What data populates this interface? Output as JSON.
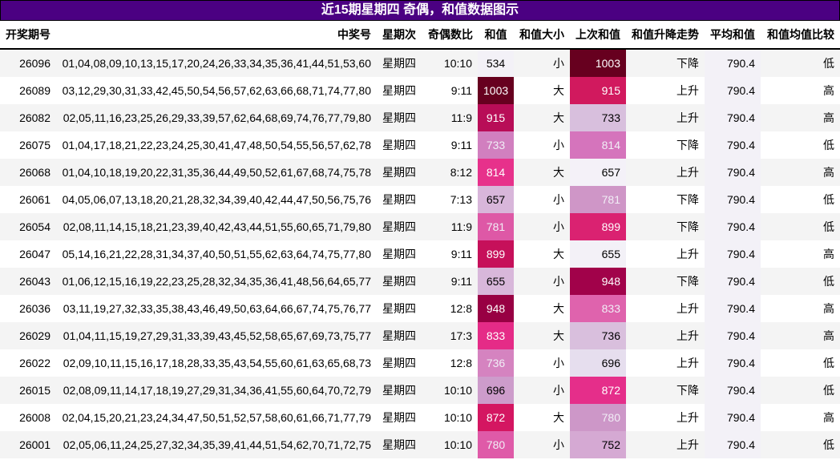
{
  "title": "近15期星期四 奇偶，和值数据图示",
  "columns": [
    "开奖期号",
    "中奖号",
    "星期次",
    "奇偶数比",
    "和值",
    "和值大小",
    "上次和值",
    "和值升降走势",
    "平均和值",
    "和值均值比较"
  ],
  "rows": [
    {
      "issue": "26096",
      "numbers": "01,04,08,09,10,13,15,17,20,24,26,33,34,35,36,41,44,51,53,60",
      "weekday": "星期四",
      "odd_even": "10:10",
      "sum": "534",
      "sum_size": "小",
      "prev_sum": "1003",
      "trend": "下降",
      "avg_sum": "790.4",
      "avg_compare": "低"
    },
    {
      "issue": "26089",
      "numbers": "03,12,29,30,31,33,42,45,50,54,56,57,62,63,66,68,71,74,77,80",
      "weekday": "星期四",
      "odd_even": "9:11",
      "sum": "1003",
      "sum_size": "大",
      "prev_sum": "915",
      "trend": "上升",
      "avg_sum": "790.4",
      "avg_compare": "高"
    },
    {
      "issue": "26082",
      "numbers": "02,05,11,16,23,25,26,29,33,39,57,62,64,68,69,74,76,77,79,80",
      "weekday": "星期四",
      "odd_even": "11:9",
      "sum": "915",
      "sum_size": "大",
      "prev_sum": "733",
      "trend": "上升",
      "avg_sum": "790.4",
      "avg_compare": "高"
    },
    {
      "issue": "26075",
      "numbers": "01,04,17,18,21,22,23,24,25,30,41,47,48,50,54,55,56,57,62,78",
      "weekday": "星期四",
      "odd_even": "9:11",
      "sum": "733",
      "sum_size": "小",
      "prev_sum": "814",
      "trend": "下降",
      "avg_sum": "790.4",
      "avg_compare": "低"
    },
    {
      "issue": "26068",
      "numbers": "01,04,10,18,19,20,22,31,35,36,44,49,50,52,61,67,68,74,75,78",
      "weekday": "星期四",
      "odd_even": "8:12",
      "sum": "814",
      "sum_size": "大",
      "prev_sum": "657",
      "trend": "上升",
      "avg_sum": "790.4",
      "avg_compare": "高"
    },
    {
      "issue": "26061",
      "numbers": "04,05,06,07,13,18,20,21,28,32,34,39,40,42,44,47,50,56,75,76",
      "weekday": "星期四",
      "odd_even": "7:13",
      "sum": "657",
      "sum_size": "小",
      "prev_sum": "781",
      "trend": "下降",
      "avg_sum": "790.4",
      "avg_compare": "低"
    },
    {
      "issue": "26054",
      "numbers": "02,08,11,14,15,18,21,23,39,40,42,43,44,51,55,60,65,71,79,80",
      "weekday": "星期四",
      "odd_even": "11:9",
      "sum": "781",
      "sum_size": "小",
      "prev_sum": "899",
      "trend": "下降",
      "avg_sum": "790.4",
      "avg_compare": "低"
    },
    {
      "issue": "26047",
      "numbers": "05,14,16,21,22,28,31,34,37,40,50,51,55,62,63,64,74,75,77,80",
      "weekday": "星期四",
      "odd_even": "9:11",
      "sum": "899",
      "sum_size": "大",
      "prev_sum": "655",
      "trend": "上升",
      "avg_sum": "790.4",
      "avg_compare": "高"
    },
    {
      "issue": "26043",
      "numbers": "01,06,12,15,16,19,22,23,25,28,32,34,35,36,41,48,56,64,65,77",
      "weekday": "星期四",
      "odd_even": "9:11",
      "sum": "655",
      "sum_size": "小",
      "prev_sum": "948",
      "trend": "下降",
      "avg_sum": "790.4",
      "avg_compare": "低"
    },
    {
      "issue": "26036",
      "numbers": "03,11,19,27,32,33,35,38,43,46,49,50,63,64,66,67,74,75,76,77",
      "weekday": "星期四",
      "odd_even": "12:8",
      "sum": "948",
      "sum_size": "大",
      "prev_sum": "833",
      "trend": "上升",
      "avg_sum": "790.4",
      "avg_compare": "高"
    },
    {
      "issue": "26029",
      "numbers": "01,04,11,15,19,27,29,31,33,39,43,45,52,58,65,67,69,73,75,77",
      "weekday": "星期四",
      "odd_even": "17:3",
      "sum": "833",
      "sum_size": "大",
      "prev_sum": "736",
      "trend": "上升",
      "avg_sum": "790.4",
      "avg_compare": "高"
    },
    {
      "issue": "26022",
      "numbers": "02,09,10,11,15,16,17,18,28,33,35,43,54,55,60,61,63,65,68,73",
      "weekday": "星期四",
      "odd_even": "12:8",
      "sum": "736",
      "sum_size": "小",
      "prev_sum": "696",
      "trend": "上升",
      "avg_sum": "790.4",
      "avg_compare": "低"
    },
    {
      "issue": "26015",
      "numbers": "02,08,09,11,14,17,18,19,27,29,31,34,36,41,55,60,64,70,72,79",
      "weekday": "星期四",
      "odd_even": "10:10",
      "sum": "696",
      "sum_size": "小",
      "prev_sum": "872",
      "trend": "下降",
      "avg_sum": "790.4",
      "avg_compare": "低"
    },
    {
      "issue": "26008",
      "numbers": "02,04,15,20,21,23,24,34,47,50,51,52,57,58,60,61,66,71,77,79",
      "weekday": "星期四",
      "odd_even": "10:10",
      "sum": "872",
      "sum_size": "大",
      "prev_sum": "780",
      "trend": "上升",
      "avg_sum": "790.4",
      "avg_compare": "高"
    },
    {
      "issue": "26001",
      "numbers": "02,05,06,11,24,25,27,32,34,35,39,41,44,51,54,62,70,71,72,75",
      "weekday": "星期四",
      "odd_even": "10:10",
      "sum": "780",
      "sum_size": "小",
      "prev_sum": "752",
      "trend": "上升",
      "avg_sum": "790.4",
      "avg_compare": "低"
    }
  ],
  "colors": {
    "title_bg": "#4b0082",
    "row_odd_bg": "#f4f4f4",
    "row_even_bg": "#ffffff",
    "avg_col_bg": "#f3f1f7",
    "sum_cell_bg": [
      "#f3f1f7",
      "#67001f",
      "#b80d57",
      "#d17fbf",
      "#e7318b",
      "#d8b6da",
      "#de58a6",
      "#c6105a",
      "#d8b7da",
      "#980043",
      "#e52b87",
      "#d583c0",
      "#cd9ccb",
      "#d41661",
      "#df5aa8"
    ],
    "sum_cell_fg": [
      "#000000",
      "#ffffff",
      "#ffffff",
      "#f1eef6",
      "#ffffff",
      "#000000",
      "#f1eef6",
      "#ffffff",
      "#000000",
      "#ffffff",
      "#ffffff",
      "#f1eef6",
      "#000000",
      "#ffffff",
      "#f1eef6"
    ],
    "prev_cell_bg": [
      "#67001f",
      "#d1195e",
      "#d8bfdd",
      "#d574bc",
      "#f4f1f8",
      "#cf96c7",
      "#da2271",
      "#f3f1f7",
      "#a1024a",
      "#df63ad",
      "#d9bfdd",
      "#e6deee",
      "#e52e8a",
      "#cd97c8",
      "#d5a9d3"
    ],
    "prev_cell_fg": [
      "#ffffff",
      "#ffffff",
      "#000000",
      "#f1eef6",
      "#000000",
      "#f1eef6",
      "#ffffff",
      "#000000",
      "#ffffff",
      "#f1eef6",
      "#000000",
      "#000000",
      "#ffffff",
      "#f1eef6",
      "#000000"
    ]
  },
  "chart_data": {
    "type": "table",
    "title": "近15期星期四 奇偶，和值数据图示",
    "colormap": "PuRd",
    "heatmap_columns": [
      "和值",
      "上次和值"
    ],
    "columns": [
      "开奖期号",
      "中奖号",
      "星期次",
      "奇偶数比",
      "和值",
      "和值大小",
      "上次和值",
      "和值升降走势",
      "平均和值",
      "和值均值比较"
    ],
    "issues": [
      "26096",
      "26089",
      "26082",
      "26075",
      "26068",
      "26061",
      "26054",
      "26047",
      "26043",
      "26036",
      "26029",
      "26022",
      "26015",
      "26008",
      "26001"
    ],
    "sum": [
      534,
      1003,
      915,
      733,
      814,
      657,
      781,
      899,
      655,
      948,
      833,
      736,
      696,
      872,
      780
    ],
    "prev_sum": [
      1003,
      915,
      733,
      814,
      657,
      781,
      899,
      655,
      948,
      833,
      736,
      696,
      872,
      780,
      752
    ],
    "odd_even": [
      "10:10",
      "9:11",
      "11:9",
      "9:11",
      "8:12",
      "7:13",
      "11:9",
      "9:11",
      "9:11",
      "12:8",
      "17:3",
      "12:8",
      "10:10",
      "10:10",
      "10:10"
    ],
    "sum_size": [
      "小",
      "大",
      "大",
      "小",
      "大",
      "小",
      "小",
      "大",
      "小",
      "大",
      "大",
      "小",
      "小",
      "大",
      "小"
    ],
    "trend": [
      "下降",
      "上升",
      "上升",
      "下降",
      "上升",
      "下降",
      "下降",
      "上升",
      "下降",
      "上升",
      "上升",
      "上升",
      "下降",
      "上升",
      "上升"
    ],
    "avg_sum": 790.4,
    "avg_compare": [
      "低",
      "高",
      "高",
      "低",
      "高",
      "低",
      "低",
      "高",
      "低",
      "高",
      "高",
      "低",
      "低",
      "高",
      "低"
    ]
  }
}
